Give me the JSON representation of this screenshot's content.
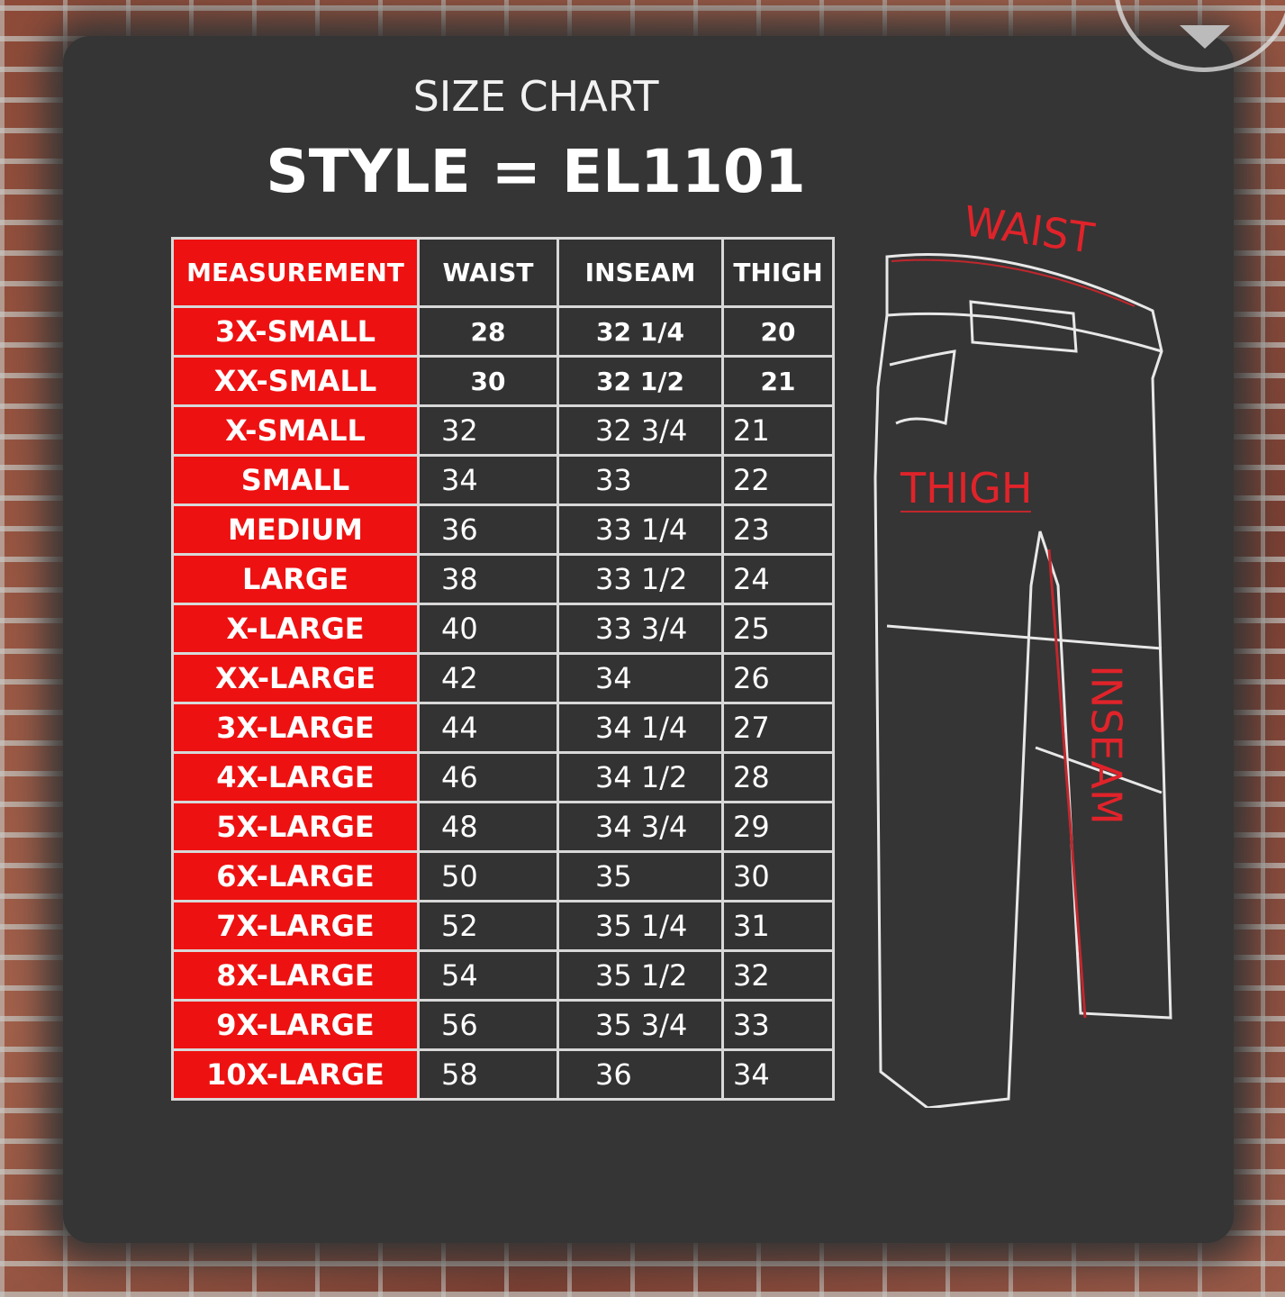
{
  "title": "SIZE CHART",
  "style_line": "STYLE = EL1101",
  "table": {
    "headers": [
      "MEASUREMENT",
      "WAIST",
      "INSEAM",
      "THIGH"
    ],
    "rows": [
      [
        "3X-SMALL",
        "28",
        "32 1/4",
        "20"
      ],
      [
        "XX-SMALL",
        "30",
        "32 1/2",
        "21"
      ],
      [
        "X-SMALL",
        "32",
        "32 3/4",
        "21"
      ],
      [
        "SMALL",
        "34",
        "33",
        "22"
      ],
      [
        "MEDIUM",
        "36",
        "33 1/4",
        "23"
      ],
      [
        "LARGE",
        "38",
        "33 1/2",
        "24"
      ],
      [
        "X-LARGE",
        "40",
        "33 3/4",
        "25"
      ],
      [
        "XX-LARGE",
        "42",
        "34",
        "26"
      ],
      [
        "3X-LARGE",
        "44",
        "34 1/4",
        "27"
      ],
      [
        "4X-LARGE",
        "46",
        "34 1/2",
        "28"
      ],
      [
        "5X-LARGE",
        "48",
        "34 3/4",
        "29"
      ],
      [
        "6X-LARGE",
        "50",
        "35",
        "30"
      ],
      [
        "7X-LARGE",
        "52",
        "35 1/4",
        "31"
      ],
      [
        "8X-LARGE",
        "54",
        "35 1/2",
        "32"
      ],
      [
        "9X-LARGE",
        "56",
        "35 3/4",
        "33"
      ],
      [
        "10X-LARGE",
        "58",
        "36",
        "34"
      ]
    ]
  },
  "diagram_labels": {
    "waist": "WAIST",
    "thigh": "THIGH",
    "inseam": "INSEAM"
  },
  "colors": {
    "accent_red": "#ee1111",
    "board": "#353535",
    "label_red": "#e0232a"
  }
}
